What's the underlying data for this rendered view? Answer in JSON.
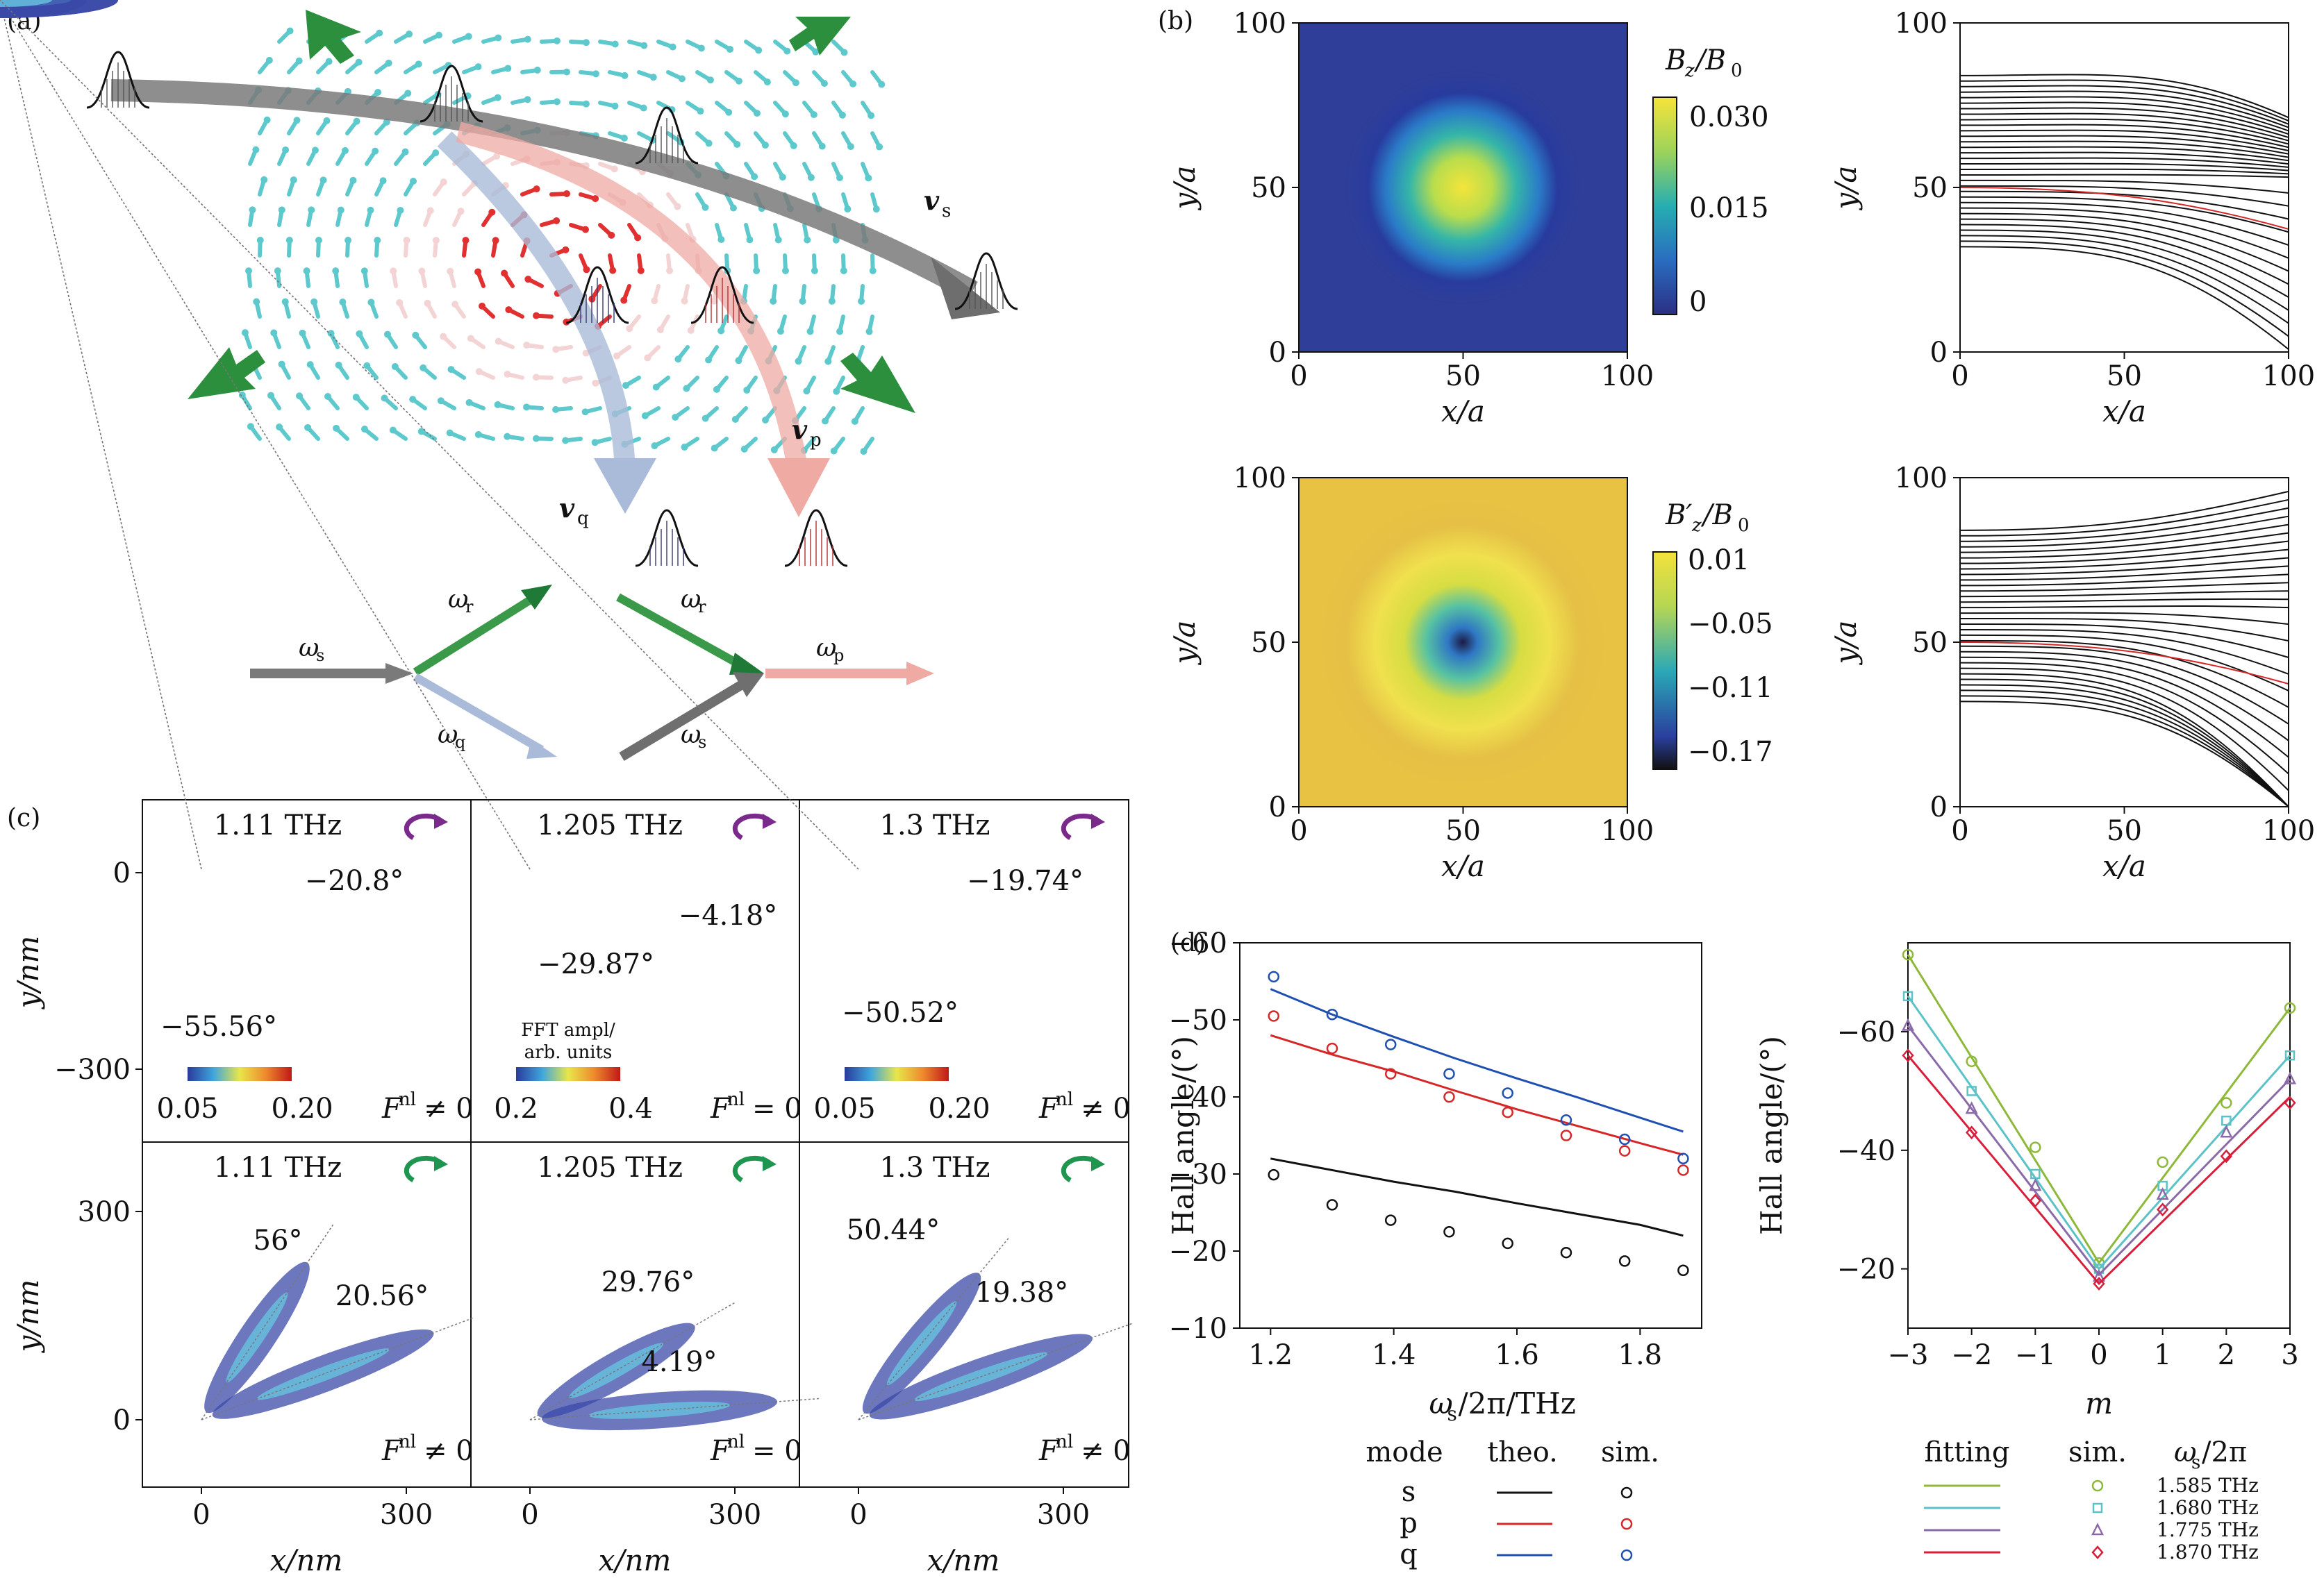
{
  "panels": {
    "a": "(a)",
    "b": "(b)",
    "c": "(c)",
    "d": "(d)"
  },
  "panel_a": {
    "labels": {
      "vs": "v",
      "vs_sub": "s",
      "vp": "v",
      "vp_sub": "p",
      "vq": "v",
      "vq_sub": "q"
    },
    "diagram": {
      "ws": "ω",
      "ws_sub": "s",
      "wr1": "ω",
      "wr1_sub": "r",
      "wq": "ω",
      "wq_sub": "q",
      "wr2": "ω",
      "wr2_sub": "r",
      "ws2": "ω",
      "ws2_sub": "s",
      "wp": "ω",
      "wp_sub": "p"
    }
  },
  "panel_b": {
    "cb1_label": "B_z/B_0",
    "cb1_label_main": "B",
    "cb1_label_sub": "z",
    "cb1_label_den": "/B",
    "cb1_label_den_sub": "0",
    "cb1_ticks": [
      "0.030",
      "0.015",
      "0"
    ],
    "cb2_label_main": "B′",
    "cb2_label_sub": "z",
    "cb2_label_den": "/B",
    "cb2_label_den_sub": "0",
    "cb2_ticks": [
      "0.01",
      "−0.05",
      "−0.11",
      "−0.17"
    ],
    "ticks": [
      "0",
      "50",
      "100"
    ],
    "xlabel": "x/a",
    "ylabel": "y/a"
  },
  "panel_c": {
    "ylabel": "y/nm",
    "xlabel": "x/nm",
    "yticks_top": [
      "0",
      "−300"
    ],
    "yticks_bottom": [
      "300",
      "0"
    ],
    "xticks": [
      "0",
      "300"
    ],
    "cells": [
      {
        "freq": "1.11 THz",
        "angles": [
          "−20.8°",
          "−55.56°"
        ],
        "cb": [
          "0.05",
          "0.20"
        ],
        "F": "F",
        "Fsup": "nl",
        "Frel": "≠ 0"
      },
      {
        "freq": "1.205 THz",
        "angles": [
          "−4.18°",
          "−29.87°"
        ],
        "cb": [
          "0.2",
          "0.4"
        ],
        "cbtitle1": "FFT ampl/",
        "cbtitle2": "arb. units",
        "F": "F",
        "Fsup": "nl",
        "Frel": "= 0"
      },
      {
        "freq": "1.3 THz",
        "angles": [
          "−19.74°",
          "−50.52°"
        ],
        "cb": [
          "0.05",
          "0.20"
        ],
        "F": "F",
        "Fsup": "nl",
        "Frel": "≠ 0"
      },
      {
        "freq": "1.11 THz",
        "angles": [
          "56°",
          "20.56°"
        ],
        "F": "F",
        "Fsup": "nl",
        "Frel": "≠ 0"
      },
      {
        "freq": "1.205 THz",
        "angles": [
          "29.76°",
          "4.19°"
        ],
        "F": "F",
        "Fsup": "nl",
        "Frel": "= 0"
      },
      {
        "freq": "1.3 THz",
        "angles": [
          "50.44°",
          "19.38°"
        ],
        "F": "F",
        "Fsup": "nl",
        "Frel": "≠ 0"
      }
    ]
  },
  "panel_d": {
    "ylabel": "Hall angle/(°)",
    "left_xlabel": "ω_s/2π/THz",
    "left_xlabel_main": "ω",
    "left_xlabel_sub": "s",
    "left_xlabel_rest": "/2π/THz",
    "left_yticks": [
      "−60",
      "−50",
      "−40",
      "−30",
      "−20",
      "−10"
    ],
    "left_xticks": [
      "1.2",
      "1.4",
      "1.6",
      "1.8"
    ],
    "right_xlabel": "m",
    "right_yticks": [
      "−60",
      "−40",
      "−20"
    ],
    "right_xticks": [
      "−3",
      "−2",
      "−1",
      "0",
      "1",
      "2",
      "3"
    ],
    "legend_left": {
      "headers": [
        "mode",
        "theo.",
        "sim."
      ],
      "rows": [
        "s",
        "p",
        "q"
      ]
    },
    "legend_right": {
      "headers": [
        "fitting",
        "sim.",
        "ω_s/2π"
      ],
      "header3_main": "ω",
      "header3_sub": "s",
      "header3_rest": "/2π",
      "rows": [
        "1.585 THz",
        "1.680 THz",
        "1.775 THz",
        "1.870 THz"
      ]
    },
    "colors": {
      "s": "#111111",
      "p": "#d62728",
      "q": "#1f4fb0",
      "f1585": "#8db83a",
      "f1680": "#5bc2c8",
      "f1775": "#8a6aa8",
      "f1870": "#d81e3a"
    }
  },
  "chart_data": [
    {
      "type": "line",
      "xlabel": "ω_s/2π/THz",
      "ylabel": "Hall angle/(°)",
      "ylim": [
        -60,
        -10
      ],
      "xlim": [
        1.15,
        1.9
      ],
      "series": [
        {
          "name": "s",
          "kind": "theo.",
          "x": [
            1.2,
            1.3,
            1.4,
            1.5,
            1.6,
            1.7,
            1.8,
            1.87
          ],
          "y": [
            -32,
            -30.5,
            -29,
            -27.7,
            -26.2,
            -24.8,
            -23.4,
            -22
          ]
        },
        {
          "name": "s",
          "kind": "sim.",
          "x": [
            1.205,
            1.3,
            1.395,
            1.49,
            1.585,
            1.68,
            1.775,
            1.87
          ],
          "y": [
            -29.9,
            -26,
            -24,
            -22.5,
            -21,
            -19.8,
            -18.7,
            -17.5
          ]
        },
        {
          "name": "p",
          "kind": "theo.",
          "x": [
            1.2,
            1.3,
            1.4,
            1.5,
            1.6,
            1.7,
            1.8,
            1.87
          ],
          "y": [
            -48,
            -45.5,
            -43.3,
            -40.8,
            -38.4,
            -36.2,
            -34,
            -32.5
          ]
        },
        {
          "name": "p",
          "kind": "sim.",
          "x": [
            1.205,
            1.3,
            1.395,
            1.49,
            1.585,
            1.68,
            1.775,
            1.87
          ],
          "y": [
            -50.5,
            -46.3,
            -43,
            -40,
            -38,
            -35,
            -33,
            -30.5
          ]
        },
        {
          "name": "q",
          "kind": "theo.",
          "x": [
            1.2,
            1.3,
            1.4,
            1.5,
            1.6,
            1.7,
            1.8,
            1.87
          ],
          "y": [
            -54,
            -50.7,
            -47.8,
            -45,
            -42.4,
            -39.9,
            -37.3,
            -35.5
          ]
        },
        {
          "name": "q",
          "kind": "sim.",
          "x": [
            1.205,
            1.3,
            1.395,
            1.49,
            1.585,
            1.68,
            1.775,
            1.87
          ],
          "y": [
            -55.6,
            -50.7,
            -46.8,
            -43,
            -40.5,
            -37,
            -34.5,
            -32
          ]
        }
      ]
    },
    {
      "type": "line",
      "xlabel": "m",
      "ylabel": "Hall angle/(°)",
      "ylim": [
        -75,
        -10
      ],
      "xlim": [
        -3,
        3
      ],
      "series": [
        {
          "name": "1.585 THz",
          "kind": "fitting",
          "x": [
            -3,
            0,
            3
          ],
          "y": [
            -73,
            -21,
            -64
          ]
        },
        {
          "name": "1.585 THz",
          "kind": "sim.",
          "x": [
            -3,
            -2,
            -1,
            0,
            1,
            2,
            3
          ],
          "y": [
            -73,
            -55,
            -40.5,
            -21,
            -38,
            -48,
            -64
          ]
        },
        {
          "name": "1.680 THz",
          "kind": "fitting",
          "x": [
            -3,
            0,
            3
          ],
          "y": [
            -66,
            -20,
            -56
          ]
        },
        {
          "name": "1.680 THz",
          "kind": "sim.",
          "x": [
            -3,
            -2,
            -1,
            0,
            1,
            2,
            3
          ],
          "y": [
            -66,
            -50,
            -36,
            -20,
            -34,
            -45,
            -56
          ]
        },
        {
          "name": "1.775 THz",
          "kind": "fitting",
          "x": [
            -3,
            0,
            3
          ],
          "y": [
            -61,
            -19,
            -52
          ]
        },
        {
          "name": "1.775 THz",
          "kind": "sim.",
          "x": [
            -3,
            -2,
            -1,
            0,
            1,
            2,
            3
          ],
          "y": [
            -61,
            -47,
            -34,
            -18.7,
            -32.5,
            -43,
            -52
          ]
        },
        {
          "name": "1.870 THz",
          "kind": "fitting",
          "x": [
            -3,
            0,
            3
          ],
          "y": [
            -56,
            -17.5,
            -49
          ]
        },
        {
          "name": "1.870 THz",
          "kind": "sim.",
          "x": [
            -3,
            -2,
            -1,
            0,
            1,
            2,
            3
          ],
          "y": [
            -56,
            -43,
            -31.5,
            -17.5,
            -30,
            -39,
            -48
          ]
        }
      ]
    }
  ]
}
